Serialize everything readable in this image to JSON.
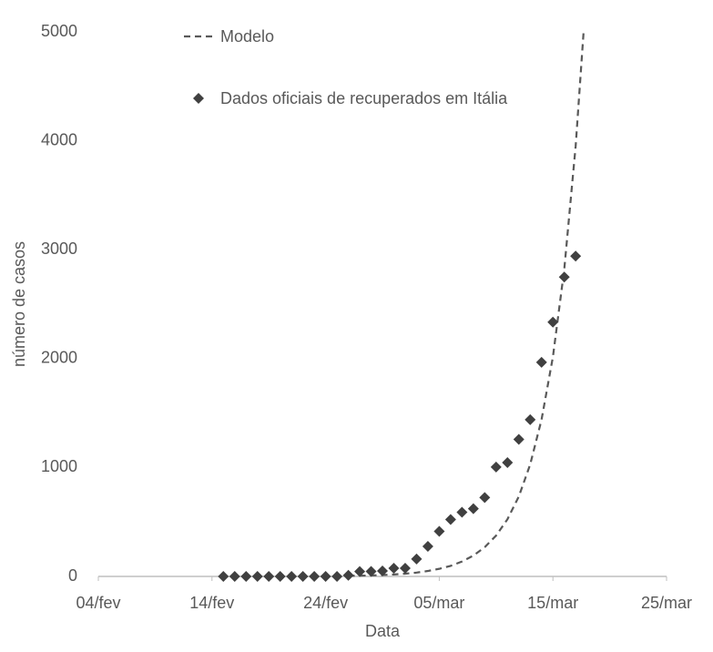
{
  "chart_data": {
    "type": "line",
    "x_label": "Data",
    "y_label": "número de casos",
    "xlim": [
      35,
      85
    ],
    "xticks": [
      {
        "value": 35,
        "label": "04/fev"
      },
      {
        "value": 45,
        "label": "14/fev"
      },
      {
        "value": 55,
        "label": "24/fev"
      },
      {
        "value": 65,
        "label": "05/mar"
      },
      {
        "value": 75,
        "label": "15/mar"
      },
      {
        "value": 85,
        "label": "25/mar"
      }
    ],
    "ylim": [
      0,
      5000
    ],
    "yticks": [
      0,
      1000,
      2000,
      3000,
      4000,
      5000
    ],
    "grid": false,
    "series": [
      {
        "name": "Modelo",
        "color": "#595959",
        "style": "dashed",
        "x": [
          57,
          58,
          59,
          60,
          61,
          62,
          63,
          64,
          65,
          66,
          67,
          68,
          69,
          70,
          71,
          72,
          73,
          74,
          75,
          76,
          77,
          77.7
        ],
        "values": [
          5,
          7,
          9,
          13,
          18,
          25,
          35,
          50,
          70,
          97,
          137,
          191,
          268,
          375,
          525,
          734,
          1028,
          1440,
          2016,
          2822,
          3950,
          5000
        ]
      },
      {
        "name": "Dados oficiais de recuperados em Itália",
        "color": "#404040",
        "style": "markers",
        "x": [
          46,
          47,
          48,
          49,
          50,
          51,
          52,
          53,
          54,
          55,
          56,
          57,
          58,
          59,
          60,
          61,
          62,
          63,
          64,
          65,
          66,
          67,
          68,
          69,
          70,
          71,
          72,
          73,
          74,
          75,
          76,
          77
        ],
        "values": [
          0,
          0,
          0,
          0,
          0,
          0,
          0,
          0,
          0,
          0,
          0,
          10,
          45,
          46,
          50,
          75,
          75,
          160,
          276,
          414,
          523,
          589,
          622,
          724,
          1004,
          1045,
          1258,
          1439,
          1966,
          2335,
          2749,
          2941
        ]
      }
    ]
  }
}
